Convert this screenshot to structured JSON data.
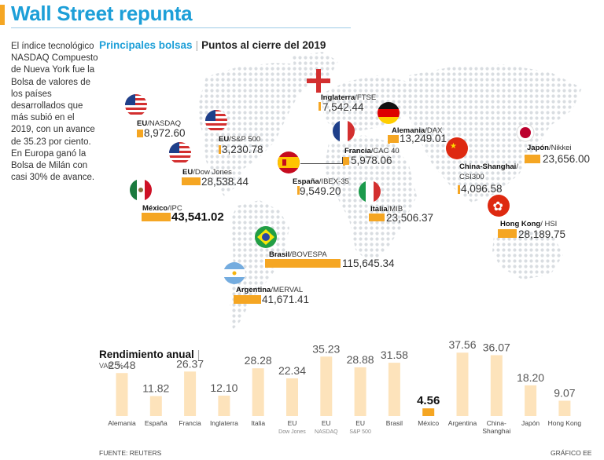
{
  "header": {
    "title": "Wall Street repunta"
  },
  "intro_text": "El índice tecnológico NASDAQ Compuesto de Nueva York fue la Bolsa de valores de los países desarrollados que más subió en el 2019, con un avance de 35.23 por ciento. En Europa ganó la Bolsa de Milán con casi 30% de avance.",
  "map_section": {
    "title_main": "Principales bolsas",
    "separator": "|",
    "title_sub": "Puntos al cierre del 2019"
  },
  "markets": [
    {
      "country": "EU",
      "index": "/NASDAQ",
      "value": "8,972.60",
      "flag": "us-flag"
    },
    {
      "country": "EU",
      "index": "/S&P 500",
      "value": "3,230.78",
      "flag": "us-flag"
    },
    {
      "country": "EU",
      "index": "/Dow Jones",
      "value": "28,538.44",
      "flag": "us-flag"
    },
    {
      "country": "México",
      "index": "/IPC",
      "value": "43,541.02",
      "flag": "mexico-flag"
    },
    {
      "country": "Inglaterra",
      "index": "/FTSE",
      "value": "7,542.44",
      "flag": "england-flag"
    },
    {
      "country": "Alemania",
      "index": "/DAX",
      "value": "13,249.01",
      "flag": "germany-flag"
    },
    {
      "country": "Francia",
      "index": "/CAC 40",
      "value": "5,978.06",
      "flag": "france-flag"
    },
    {
      "country": "España",
      "index": "/IBEX-35",
      "value": "9,549.20",
      "flag": "spain-flag"
    },
    {
      "country": "Italia",
      "index": "/MIB",
      "value": "23,506.37",
      "flag": "italy-flag"
    },
    {
      "country": "China-Shanghai",
      "index": "/",
      "index2": "CSI300",
      "value": "4,096.58",
      "flag": "china-flag"
    },
    {
      "country": "Japón",
      "index": "/Nikkei",
      "value": "23,656.00",
      "flag": "japan-flag"
    },
    {
      "country": "Hong Kong",
      "index": "/ HSI",
      "value": "28,189.75",
      "flag": "hongkong-flag"
    },
    {
      "country": "Brasil",
      "index": "/BOVESPA",
      "value": "115,645.34",
      "flag": "brazil-flag"
    },
    {
      "country": "Argentina",
      "index": "/MERVAL",
      "value": "41,671.41",
      "flag": "argentina-flag"
    }
  ],
  "rendimiento": {
    "title": "Rendimiento anual",
    "separator": "|",
    "unit": "VAR. %"
  },
  "chart_data": {
    "type": "bar",
    "title": "Rendimiento anual",
    "ylabel": "VAR. %",
    "categories": [
      "Alemania",
      "España",
      "Francia",
      "Inglaterra",
      "Italia",
      "EU",
      "EU",
      "EU",
      "Brasil",
      "México",
      "Argentina",
      "China-Shanghai",
      "Japón",
      "Hong Kong"
    ],
    "subcategories": [
      "",
      "",
      "",
      "",
      "",
      "Dow Jones",
      "NASDAQ",
      "S&P 500",
      "",
      "",
      "",
      "",
      "",
      ""
    ],
    "values": [
      25.48,
      11.82,
      26.37,
      12.1,
      28.28,
      22.34,
      35.23,
      28.88,
      31.58,
      4.56,
      37.56,
      36.07,
      18.2,
      9.07
    ],
    "value_labels": [
      "25.48",
      "11.82",
      "26.37",
      "12.10",
      "28.28",
      "22.34",
      "35.23",
      "28.88",
      "31.58",
      "4.56",
      "37.56",
      "36.07",
      "18.20",
      "9.07"
    ],
    "highlight_index": 9,
    "ylim": [
      0,
      40
    ],
    "bar_color": "#fde3bb",
    "highlight_color": "#f5a623"
  },
  "colors": {
    "accent_blue": "#1d9fd8",
    "accent_orange": "#f5a623",
    "map_dots": "#d9dde1"
  },
  "footer": {
    "source": "FUENTE: REUTERS",
    "credit": "GRÁFICO EE"
  }
}
